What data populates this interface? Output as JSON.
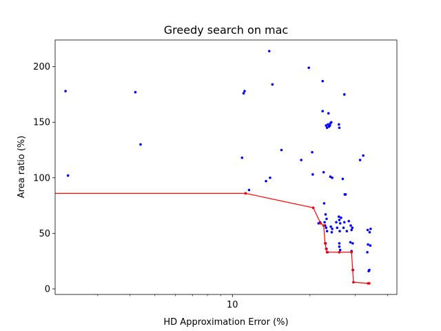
{
  "chart_data": {
    "type": "scatter",
    "title": "Greedy search on mac",
    "xlabel": "HD Approximation Error (%)",
    "ylabel": "Area ratio (%)",
    "xscale": "log",
    "xlim": [
      2.05,
      43.5
    ],
    "ylim": [
      -5,
      224
    ],
    "x_ticks": [
      {
        "value": 10,
        "label": "10"
      }
    ],
    "y_ticks": [
      {
        "value": 0,
        "label": "0"
      },
      {
        "value": 50,
        "label": "50"
      },
      {
        "value": 100,
        "label": "100"
      },
      {
        "value": 150,
        "label": "150"
      },
      {
        "value": 200,
        "label": "200"
      }
    ],
    "grid": false,
    "colors": {
      "points": "#0000ff",
      "front": "#ff0000"
    },
    "series": [
      {
        "role": "all-candidates",
        "points": [
          [
            2.25,
            178
          ],
          [
            2.3,
            102
          ],
          [
            4.2,
            177
          ],
          [
            4.4,
            130
          ],
          [
            10.9,
            118
          ],
          [
            11.05,
            176
          ],
          [
            11.15,
            178
          ],
          [
            11.6,
            89
          ],
          [
            11.25,
            86
          ],
          [
            13.5,
            97
          ],
          [
            13.9,
            214
          ],
          [
            14,
            100
          ],
          [
            14.3,
            184
          ],
          [
            15.5,
            125
          ],
          [
            18.5,
            116
          ],
          [
            19.8,
            199
          ],
          [
            20.4,
            123
          ],
          [
            20.5,
            103
          ],
          [
            20.6,
            73
          ],
          [
            21.6,
            59
          ],
          [
            21.9,
            60
          ],
          [
            22.4,
            187
          ],
          [
            22.4,
            160
          ],
          [
            22.6,
            105
          ],
          [
            22.7,
            77
          ],
          [
            22.8,
            60
          ],
          [
            23,
            67
          ],
          [
            22.9,
            57
          ],
          [
            23.1,
            55
          ],
          [
            23.3,
            52
          ],
          [
            23.2,
            63
          ],
          [
            23.0,
            41
          ],
          [
            23.2,
            36
          ],
          [
            23.4,
            33
          ],
          [
            23.1,
            147
          ],
          [
            23.3,
            145
          ],
          [
            23.5,
            148
          ],
          [
            23.6,
            158
          ],
          [
            23.7,
            146
          ],
          [
            23.9,
            147
          ],
          [
            24.0,
            149
          ],
          [
            24.2,
            150
          ],
          [
            24.0,
            101
          ],
          [
            24.4,
            100
          ],
          [
            24.1,
            56
          ],
          [
            24.4,
            54
          ],
          [
            24.3,
            51
          ],
          [
            25.3,
            60
          ],
          [
            25.5,
            55
          ],
          [
            25.9,
            148
          ],
          [
            26.0,
            145
          ],
          [
            25.9,
            65
          ],
          [
            26.0,
            62
          ],
          [
            26.2,
            59
          ],
          [
            26.4,
            64
          ],
          [
            26.1,
            52
          ],
          [
            26.0,
            41
          ],
          [
            26.0,
            38
          ],
          [
            26.2,
            35
          ],
          [
            26.0,
            33
          ],
          [
            26.8,
            99
          ],
          [
            27.2,
            175
          ],
          [
            27.3,
            85
          ],
          [
            27.5,
            85
          ],
          [
            27.2,
            60
          ],
          [
            27.0,
            55
          ],
          [
            27.8,
            52
          ],
          [
            28.3,
            61
          ],
          [
            28.8,
            57
          ],
          [
            29.0,
            53
          ],
          [
            29.2,
            55
          ],
          [
            28.7,
            42
          ],
          [
            29.3,
            41
          ],
          [
            29.0,
            34
          ],
          [
            29.4,
            17
          ],
          [
            29.5,
            6
          ],
          [
            31.3,
            116
          ],
          [
            32.2,
            120
          ],
          [
            33.5,
            53
          ],
          [
            34.1,
            51
          ],
          [
            34.4,
            54
          ],
          [
            33.6,
            40
          ],
          [
            34.3,
            39
          ],
          [
            33.4,
            33
          ],
          [
            33.8,
            16
          ],
          [
            34.0,
            17
          ],
          [
            33.9,
            5
          ]
        ]
      },
      {
        "role": "greedy-path",
        "points": [
          [
            2.05,
            86
          ],
          [
            11.25,
            86
          ],
          [
            20.6,
            73
          ],
          [
            22.0,
            59
          ],
          [
            22.6,
            57
          ],
          [
            22.9,
            41
          ],
          [
            23.1,
            36
          ],
          [
            23.3,
            33
          ],
          [
            26.0,
            33
          ],
          [
            29.0,
            33
          ],
          [
            29.3,
            17
          ],
          [
            29.5,
            6
          ],
          [
            33.6,
            5
          ],
          [
            34.0,
            5
          ]
        ]
      }
    ]
  }
}
